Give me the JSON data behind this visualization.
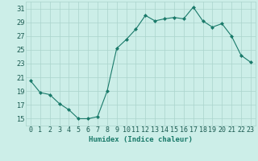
{
  "x": [
    0,
    1,
    2,
    3,
    4,
    5,
    6,
    7,
    8,
    9,
    10,
    11,
    12,
    13,
    14,
    15,
    16,
    17,
    18,
    19,
    20,
    21,
    22,
    23
  ],
  "y": [
    20.5,
    18.8,
    18.5,
    17.2,
    16.3,
    15.0,
    15.0,
    15.3,
    19.0,
    25.2,
    26.5,
    28.0,
    30.0,
    29.2,
    29.5,
    29.7,
    29.5,
    31.2,
    29.2,
    28.3,
    28.8,
    27.0,
    24.2,
    23.2
  ],
  "line_color": "#1a7a6a",
  "marker": "D",
  "marker_size": 2.0,
  "bg_color": "#cceee8",
  "grid_color": "#aad4cc",
  "xlabel": "Humidex (Indice chaleur)",
  "xlim": [
    -0.5,
    23.5
  ],
  "ylim": [
    14,
    32
  ],
  "yticks": [
    15,
    17,
    19,
    21,
    23,
    25,
    27,
    29,
    31
  ],
  "xticks": [
    0,
    1,
    2,
    3,
    4,
    5,
    6,
    7,
    8,
    9,
    10,
    11,
    12,
    13,
    14,
    15,
    16,
    17,
    18,
    19,
    20,
    21,
    22,
    23
  ],
  "xtick_labels": [
    "0",
    "1",
    "2",
    "3",
    "4",
    "5",
    "6",
    "7",
    "8",
    "9",
    "10",
    "11",
    "12",
    "13",
    "14",
    "15",
    "16",
    "17",
    "18",
    "19",
    "20",
    "21",
    "22",
    "23"
  ],
  "label_fontsize": 6.5,
  "tick_fontsize": 6.0
}
